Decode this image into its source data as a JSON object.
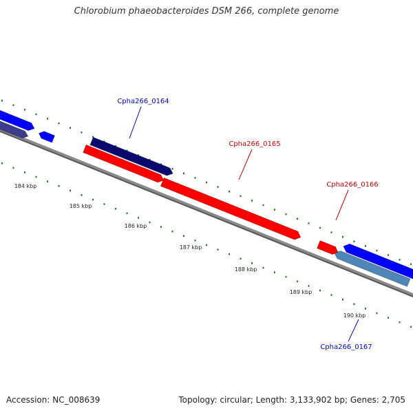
{
  "title": "Chlorobium phaeobacteroides DSM 266, complete genome",
  "footer": {
    "accession": "Accession: NC_008639",
    "topology": "Topology: circular; Length: 3,133,902 bp; Genes: 2,705"
  },
  "colors": {
    "forward_cds": "#ff0000",
    "reverse_cds_dark": "#0a0a6e",
    "reverse_cds_blue": "#0000ff",
    "reverse_cds_steel": "#4f86b8",
    "reverse_cds_slate": "#3c3c8a",
    "backbone": "#8a8a8a",
    "ticks": "#1a7a1a",
    "forward_label": "#cc0000",
    "reverse_label": "#0000cc"
  },
  "scale_labels": [
    "184 kbp",
    "185 kbp",
    "186 kbp",
    "187 kbp",
    "188 kbp",
    "189 kbp",
    "190 kbp"
  ],
  "genes": [
    {
      "id": "Cpha266_0164",
      "strand": "reverse",
      "color_key": "reverse_cds_dark",
      "labeled": true
    },
    {
      "id": "Cpha266_0165",
      "strand": "forward",
      "color_key": "forward_cds",
      "labeled": true
    },
    {
      "id": "Cpha266_0166",
      "strand": "forward",
      "color_key": "forward_cds",
      "labeled": true
    },
    {
      "id": "Cpha266_0167",
      "strand": "reverse",
      "color_key": "reverse_cds_steel",
      "labeled": true
    }
  ]
}
